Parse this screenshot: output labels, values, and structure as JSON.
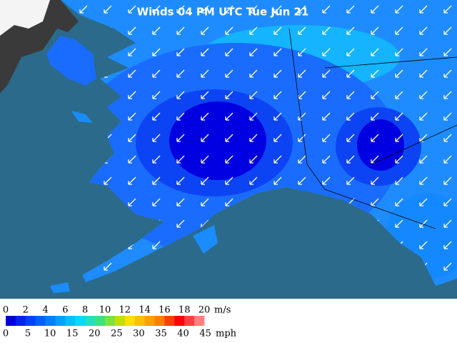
{
  "map": {
    "title": "Winds 04 PM UTC Tue Jun 21"
  },
  "legend": {
    "colors": [
      "#0000d8",
      "#0020f0",
      "#0040ff",
      "#0060ff",
      "#0080ff",
      "#00a0ff",
      "#00c0ff",
      "#00dcff",
      "#20e0c0",
      "#40e080",
      "#80e040",
      "#c0e000",
      "#ffe000",
      "#ffc000",
      "#ffa000",
      "#ff8000",
      "#ff4000",
      "#ff0000",
      "#ff4040",
      "#ff8080"
    ],
    "ms_ticks": [
      0,
      2,
      4,
      6,
      8,
      10,
      12,
      14,
      16,
      18,
      20
    ],
    "ms_unit": "m/s",
    "mph_ticks": [
      0,
      5,
      10,
      15,
      20,
      25,
      30,
      35,
      40,
      45
    ],
    "mph_unit": "mph"
  }
}
